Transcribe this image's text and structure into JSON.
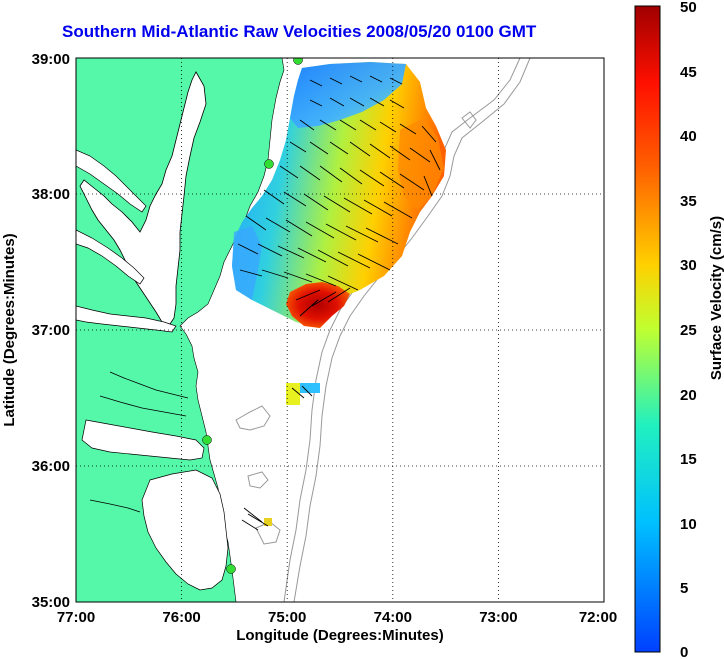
{
  "title": "Southern Mid-Atlantic Raw Velocities 2008/05/20 0100 GMT",
  "x_axis": {
    "label": "Longitude (Degrees:Minutes)",
    "ticks": [
      "77:00",
      "76:00",
      "75:00",
      "74:00",
      "73:00",
      "72:00"
    ]
  },
  "y_axis": {
    "label": "Latitude (Degrees:Minutes)",
    "ticks": [
      "39:00",
      "38:00",
      "37:00",
      "36:00",
      "35:00"
    ]
  },
  "colorbar": {
    "label": "Surface Velocity (cm/s)",
    "ticks": [
      "50",
      "45",
      "40",
      "35",
      "30",
      "25",
      "20",
      "15",
      "10",
      "5",
      "0"
    ],
    "min": 0,
    "max": 50
  },
  "colors": {
    "land": "#55f7a8",
    "title": "#0000ee",
    "station": "#33dd33",
    "bathymetry": "#999999"
  },
  "stations": [
    "station-north",
    "station-mid-north",
    "station-mid-south",
    "station-south"
  ]
}
